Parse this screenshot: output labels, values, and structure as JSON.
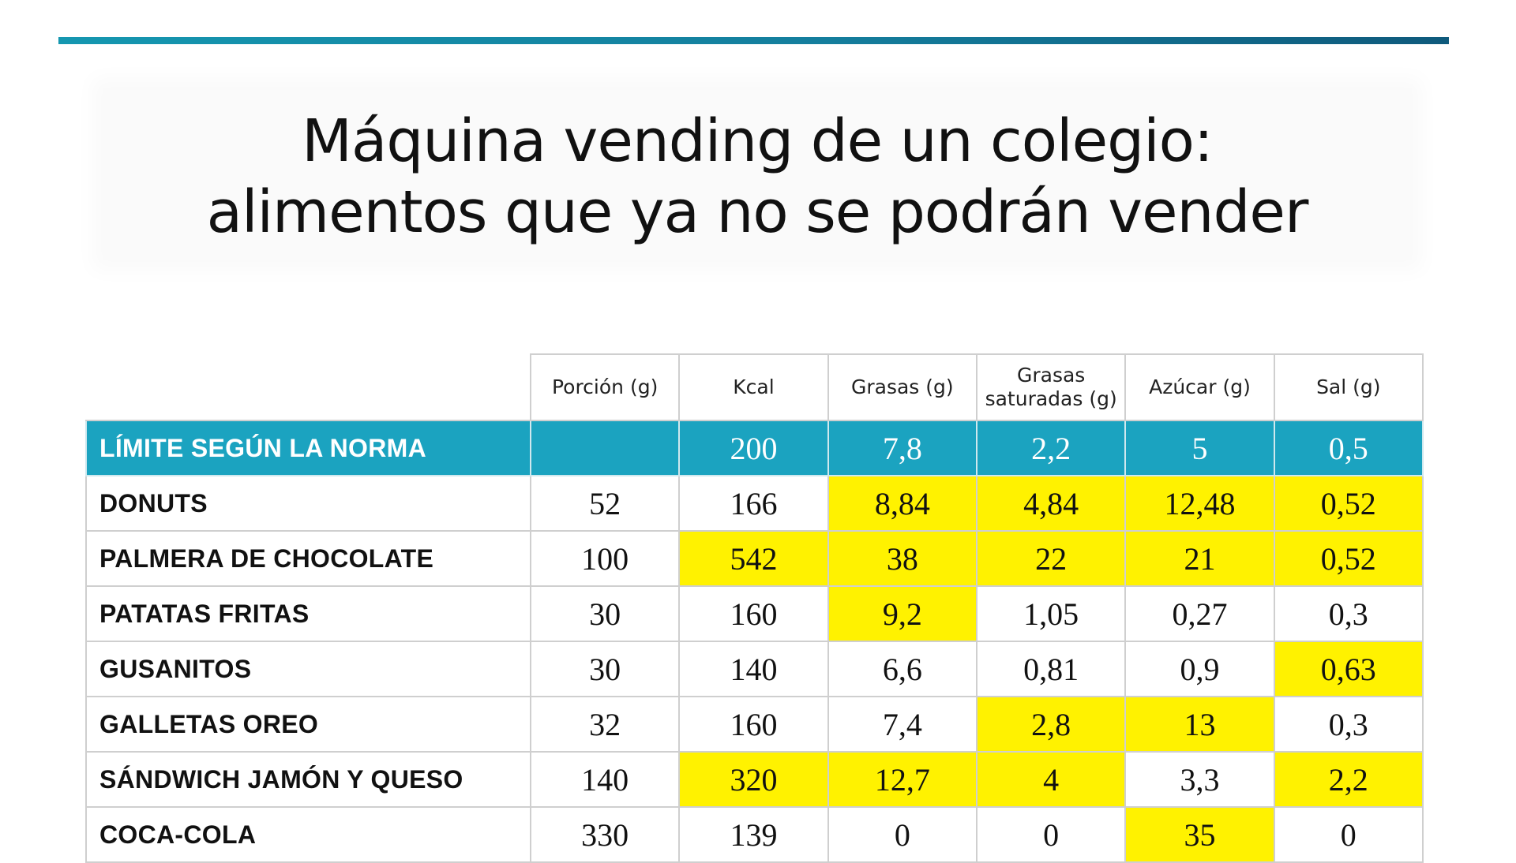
{
  "title": {
    "line1": "Máquina vending de un colegio:",
    "line2": "alimentos que ya no se podrán vender"
  },
  "colors": {
    "accent_rule": "#147e9d",
    "limit_row": "#1ba3c0",
    "highlight": "#fff200"
  },
  "table": {
    "headers": [
      "Porción (g)",
      "Kcal",
      "Grasas (g)",
      "Grasas saturadas (g)",
      "Azúcar (g)",
      "Sal (g)"
    ],
    "limit_row": {
      "label": "LÍMITE SEGÚN LA NORMA",
      "values": [
        "",
        "200",
        "7,8",
        "2,2",
        "5",
        "0,5"
      ]
    },
    "rows": [
      {
        "name": "DONUTS",
        "values": [
          "52",
          "166",
          "8,84",
          "4,84",
          "12,48",
          "0,52"
        ],
        "exceeds": [
          false,
          false,
          true,
          true,
          true,
          true
        ]
      },
      {
        "name": "PALMERA DE CHOCOLATE",
        "values": [
          "100",
          "542",
          "38",
          "22",
          "21",
          "0,52"
        ],
        "exceeds": [
          false,
          true,
          true,
          true,
          true,
          true
        ]
      },
      {
        "name": "PATATAS FRITAS",
        "values": [
          "30",
          "160",
          "9,2",
          "1,05",
          "0,27",
          "0,3"
        ],
        "exceeds": [
          false,
          false,
          true,
          false,
          false,
          false
        ]
      },
      {
        "name": "GUSANITOS",
        "values": [
          "30",
          "140",
          "6,6",
          "0,81",
          "0,9",
          "0,63"
        ],
        "exceeds": [
          false,
          false,
          false,
          false,
          false,
          true
        ]
      },
      {
        "name": "GALLETAS OREO",
        "values": [
          "32",
          "160",
          "7,4",
          "2,8",
          "13",
          "0,3"
        ],
        "exceeds": [
          false,
          false,
          false,
          true,
          true,
          false
        ]
      },
      {
        "name": "SÁNDWICH JAMÓN Y QUESO",
        "values": [
          "140",
          "320",
          "12,7",
          "4",
          "3,3",
          "2,2"
        ],
        "exceeds": [
          false,
          true,
          true,
          true,
          false,
          true
        ]
      },
      {
        "name": "COCA-COLA",
        "values": [
          "330",
          "139",
          "0",
          "0",
          "35",
          "0"
        ],
        "exceeds": [
          false,
          false,
          false,
          false,
          true,
          false
        ]
      }
    ]
  }
}
